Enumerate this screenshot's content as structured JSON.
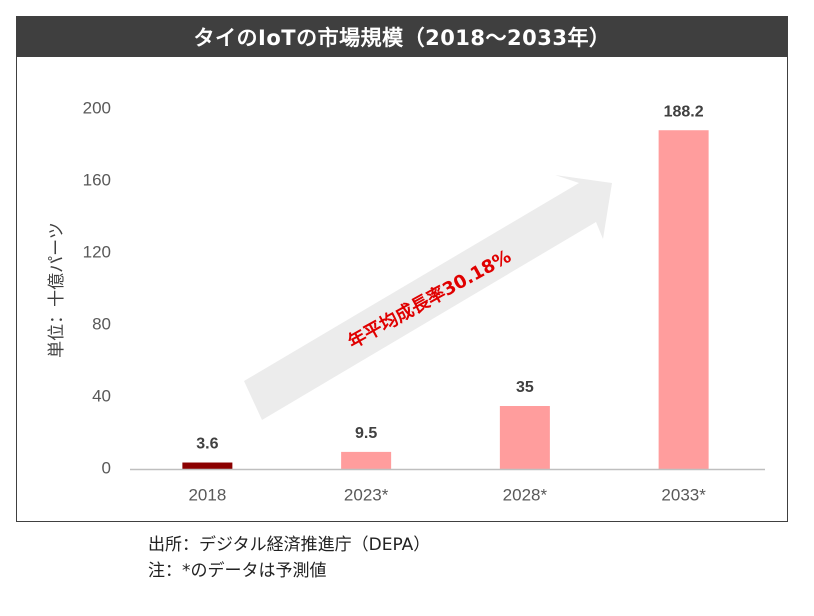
{
  "chart_data": {
    "type": "bar",
    "title": "タイのIoTの市場規模（2018～2033年）",
    "ylabel": "単位：十億パーツ",
    "categories": [
      "2018",
      "2023*",
      "2028*",
      "2033*"
    ],
    "values": [
      3.6,
      9.5,
      35,
      188.2
    ],
    "value_labels": [
      "3.6",
      "9.5",
      "35",
      "188.2"
    ],
    "yticks": [
      "0",
      "40",
      "80",
      "120",
      "160",
      "200"
    ],
    "ylim": [
      0,
      200
    ],
    "grid": false,
    "bar_colors": [
      "#8b0000",
      "#ff9d9d",
      "#ff9d9d",
      "#ff9d9d"
    ],
    "annotation": "年平均成長率30.18%",
    "annotation_color": "#e00000",
    "arrow_color": "#ececec"
  },
  "notes": {
    "source": "出所：デジタル経済推進庁（DEPA）",
    "note": "注：*のデータは予測値"
  }
}
